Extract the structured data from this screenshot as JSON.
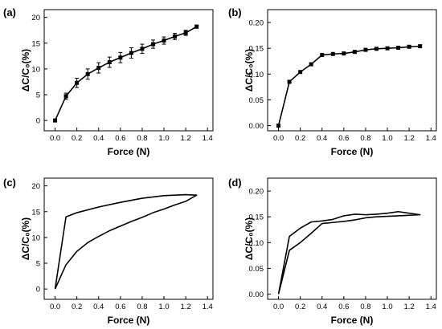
{
  "chart_data": [
    {
      "panel": "(a)",
      "type": "line",
      "xlabel": "Force (N)",
      "ylabel": "ΔC/C₀(%)",
      "xlim": [
        -0.1,
        1.45
      ],
      "ylim": [
        -2,
        21.5
      ],
      "xticks": [
        "0.0",
        "0.2",
        "0.4",
        "0.6",
        "0.8",
        "1.0",
        "1.2",
        "1.4"
      ],
      "yticks": [
        "0",
        "5",
        "10",
        "15",
        "20"
      ],
      "markers": "square",
      "error_bars": true,
      "series": [
        {
          "x": [
            0.0,
            0.1,
            0.2,
            0.3,
            0.4,
            0.5,
            0.6,
            0.7,
            0.8,
            0.9,
            1.0,
            1.1,
            1.2,
            1.3
          ],
          "y": [
            0.0,
            4.7,
            7.3,
            9.0,
            10.2,
            11.3,
            12.2,
            13.1,
            13.9,
            14.8,
            15.5,
            16.3,
            17.0,
            18.2
          ],
          "err": [
            0.0,
            0.6,
            0.9,
            1.0,
            1.0,
            1.0,
            1.0,
            1.0,
            0.9,
            0.8,
            0.7,
            0.6,
            0.5,
            0.3
          ]
        }
      ]
    },
    {
      "panel": "(b)",
      "type": "line",
      "xlabel": "Force (N)",
      "ylabel": "ΔC/C₀(%)",
      "xlim": [
        -0.1,
        1.45
      ],
      "ylim": [
        -0.01,
        0.225
      ],
      "xticks": [
        "0.0",
        "0.2",
        "0.4",
        "0.6",
        "0.8",
        "1.0",
        "1.2",
        "1.4"
      ],
      "yticks": [
        "0.00",
        "0.05",
        "0.10",
        "0.15",
        "0.20"
      ],
      "markers": "square",
      "error_bars": false,
      "series": [
        {
          "x": [
            0.0,
            0.1,
            0.2,
            0.3,
            0.4,
            0.5,
            0.6,
            0.7,
            0.8,
            0.9,
            1.0,
            1.1,
            1.2,
            1.3
          ],
          "y": [
            0.0,
            0.085,
            0.104,
            0.119,
            0.137,
            0.139,
            0.14,
            0.143,
            0.147,
            0.149,
            0.15,
            0.151,
            0.153,
            0.154
          ]
        }
      ]
    },
    {
      "panel": "(c)",
      "type": "line",
      "xlabel": "Force (N)",
      "ylabel": "ΔC/C₀(%)",
      "xlim": [
        -0.1,
        1.45
      ],
      "ylim": [
        -2,
        21.5
      ],
      "xticks": [
        "0.0",
        "0.2",
        "0.4",
        "0.6",
        "0.8",
        "1.0",
        "1.2",
        "1.4"
      ],
      "yticks": [
        "0",
        "5",
        "10",
        "15",
        "20"
      ],
      "markers": "none",
      "series": [
        {
          "x": [
            0.0,
            0.1,
            0.2,
            0.3,
            0.4,
            0.5,
            0.6,
            0.7,
            0.8,
            0.9,
            1.0,
            1.1,
            1.2,
            1.3,
            1.2,
            1.0,
            0.8,
            0.6,
            0.4,
            0.2,
            0.1,
            0.0
          ],
          "y": [
            0.0,
            4.7,
            7.3,
            9.0,
            10.2,
            11.3,
            12.2,
            13.1,
            13.9,
            14.8,
            15.5,
            16.3,
            17.0,
            18.2,
            18.3,
            18.1,
            17.6,
            16.8,
            15.9,
            14.8,
            14.0,
            0.0
          ]
        }
      ]
    },
    {
      "panel": "(d)",
      "type": "line",
      "xlabel": "Force (N)",
      "ylabel": "ΔC/C₀(%)",
      "xlim": [
        -0.1,
        1.45
      ],
      "ylim": [
        -0.01,
        0.225
      ],
      "xticks": [
        "0.0",
        "0.2",
        "0.4",
        "0.6",
        "0.8",
        "1.0",
        "1.2",
        "1.4"
      ],
      "yticks": [
        "0.00",
        "0.05",
        "0.10",
        "0.15",
        "0.20"
      ],
      "markers": "none",
      "series": [
        {
          "x": [
            0.0,
            0.1,
            0.2,
            0.3,
            0.4,
            0.5,
            0.6,
            0.7,
            0.8,
            0.9,
            1.0,
            1.1,
            1.2,
            1.3,
            1.2,
            1.1,
            1.0,
            0.9,
            0.8,
            0.7,
            0.6,
            0.5,
            0.4,
            0.3,
            0.2,
            0.1,
            0.0
          ],
          "y": [
            0.0,
            0.085,
            0.1,
            0.118,
            0.137,
            0.139,
            0.141,
            0.144,
            0.148,
            0.15,
            0.151,
            0.152,
            0.153,
            0.154,
            0.157,
            0.16,
            0.157,
            0.155,
            0.154,
            0.155,
            0.152,
            0.145,
            0.142,
            0.14,
            0.128,
            0.112,
            0.0
          ]
        }
      ]
    }
  ]
}
